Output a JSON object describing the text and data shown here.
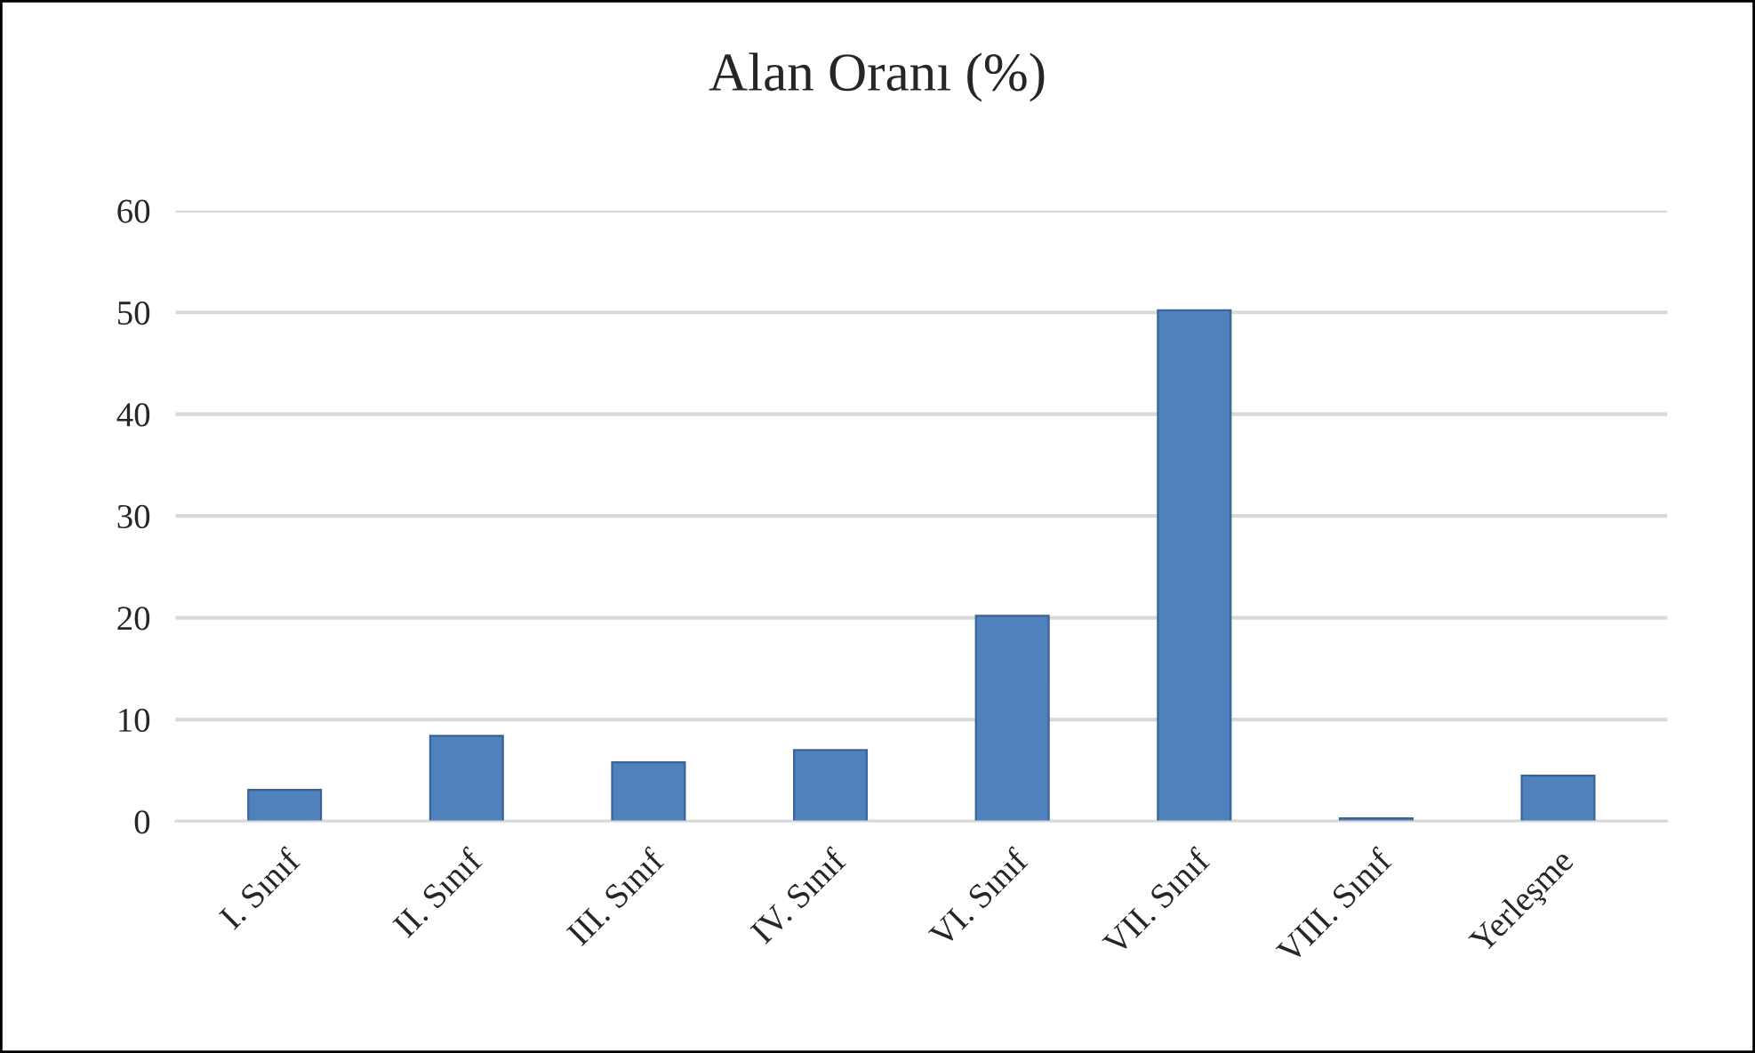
{
  "chart_data": {
    "type": "bar",
    "title": "Alan Oranı (%)",
    "categories": [
      "I. Sınıf",
      "II. Sınıf",
      "III. Sınıf",
      "IV. Sınıf",
      "VI. Sınıf",
      "VII. Sınıf",
      "VIII. Sınıf",
      "Yerleşme"
    ],
    "values": [
      3.1,
      8.4,
      5.8,
      7.0,
      20.2,
      50.2,
      0.3,
      4.5
    ],
    "color": "#4f81bd",
    "ylim": [
      0,
      60
    ],
    "yticks": [
      0,
      10,
      20,
      30,
      40,
      50,
      60
    ],
    "grid": "y"
  }
}
